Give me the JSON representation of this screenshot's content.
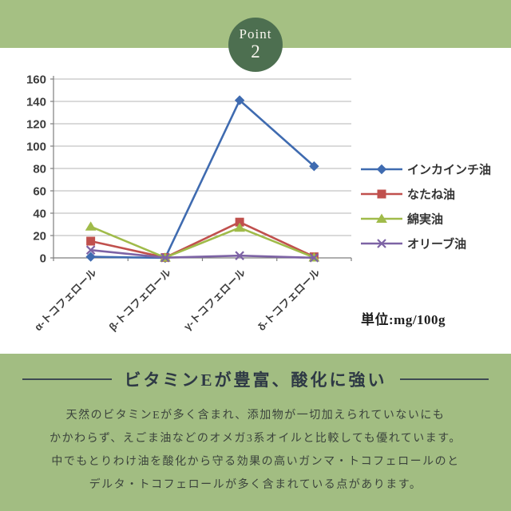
{
  "badge": {
    "label": "Point",
    "number": "2"
  },
  "chart_data": {
    "type": "line",
    "title": "",
    "xlabel": "",
    "ylabel": "",
    "categories": [
      "α-トコフェロール",
      "β-トコフェロール",
      "γ-トコフェロール",
      "δ-トコフェロール"
    ],
    "series": [
      {
        "name": "インカインチ油",
        "marker": "diamond",
        "color": "#3f6bb0",
        "values": [
          1,
          0,
          141,
          82
        ]
      },
      {
        "name": "なたね油",
        "marker": "square",
        "color": "#c0504d",
        "values": [
          15,
          0.3,
          32,
          1
        ]
      },
      {
        "name": "綿実油",
        "marker": "triangle",
        "color": "#a0bb4a",
        "values": [
          28,
          0.3,
          27,
          0.4
        ]
      },
      {
        "name": "オリーブ油",
        "marker": "x",
        "color": "#7d63a5",
        "values": [
          7,
          0.2,
          2,
          0.1
        ]
      }
    ],
    "ylim": [
      0,
      160
    ],
    "ytick_step": 20,
    "grid": true,
    "legend_position": "right",
    "unit_label": "単位:mg/100g"
  },
  "unit_label": "単位:mg/100g",
  "info": {
    "heading": "ビタミンEが豊富、酸化に強い",
    "lines": [
      "天然のビタミンEが多く含まれ、添加物が一切加えられていないにも",
      "かかわらず、えごま油などのオメガ3系オイルと比較しても優れています。",
      "中でもとりわけ油を酸化から守る効果の高いガンマ・トコフェロールのと",
      "デルタ・トコフェロールが多く含まれている点があります。"
    ]
  },
  "colors": {
    "band_green": "#a5c083",
    "badge_green": "#4d6f50",
    "section_green": "#a2bd82",
    "heading_text": "#2e3945",
    "gridline": "#b6b6b6",
    "axis": "#7f7f7f",
    "tick_text": "#3c3c3c"
  }
}
